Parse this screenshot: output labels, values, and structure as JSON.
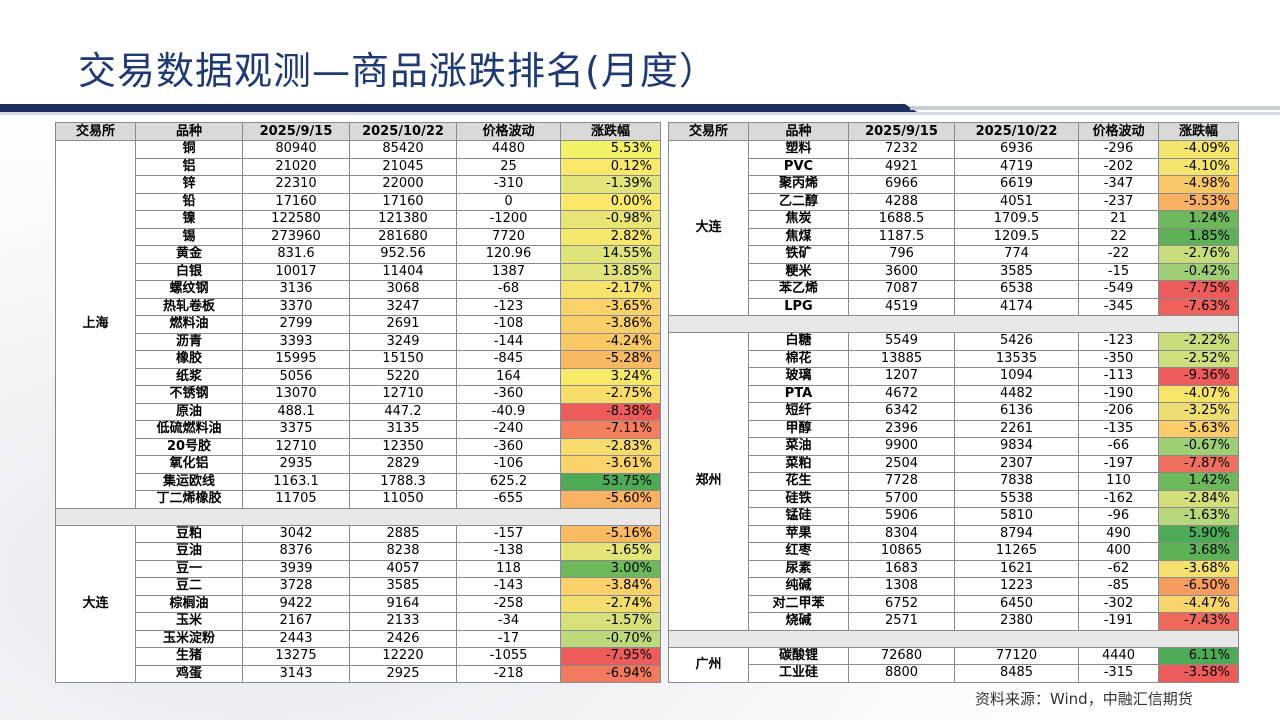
{
  "title": "交易数据观测—商品涨跌排名(月度）",
  "source": "资料来源：Wind，中融汇信期货",
  "headers": [
    "交易所",
    "品种",
    "2025/9/15",
    "2025/10/22",
    "价格波动",
    "涨跌幅"
  ],
  "colors": {
    "title": "#1f3a72",
    "strong_green": "#4daa57",
    "light_green": "#a9d08e",
    "yellow": "#ffe866",
    "light_orange": "#f8c471",
    "orange": "#f5a25a",
    "red": "#ee5b5b"
  },
  "left": {
    "groups": [
      {
        "exchange": "上海",
        "rows": [
          {
            "name": "铜",
            "p1": "80940",
            "p2": "85420",
            "chg": "4480",
            "pct": "5.53%",
            "color": "#f2f266"
          },
          {
            "name": "铝",
            "p1": "21020",
            "p2": "21045",
            "chg": "25",
            "pct": "0.12%",
            "color": "#fce96a"
          },
          {
            "name": "锌",
            "p1": "22310",
            "p2": "22000",
            "chg": "-310",
            "pct": "-1.39%",
            "color": "#e3e57a"
          },
          {
            "name": "铅",
            "p1": "17160",
            "p2": "17160",
            "chg": "0",
            "pct": "0.00%",
            "color": "#fce96a"
          },
          {
            "name": "镍",
            "p1": "122580",
            "p2": "121380",
            "chg": "-1200",
            "pct": "-0.98%",
            "color": "#e8e575"
          },
          {
            "name": "锡",
            "p1": "273960",
            "p2": "281680",
            "chg": "7720",
            "pct": "2.82%",
            "color": "#f6e86a"
          },
          {
            "name": "黄金",
            "p1": "831.6",
            "p2": "952.56",
            "chg": "120.96",
            "pct": "14.55%",
            "color": "#dfe37a"
          },
          {
            "name": "白银",
            "p1": "10017",
            "p2": "11404",
            "chg": "1387",
            "pct": "13.85%",
            "color": "#e0e47a"
          },
          {
            "name": "螺纹钢",
            "p1": "3136",
            "p2": "3068",
            "chg": "-68",
            "pct": "-2.17%",
            "color": "#f6e36c"
          },
          {
            "name": "热轧卷板",
            "p1": "3370",
            "p2": "3247",
            "chg": "-123",
            "pct": "-3.65%",
            "color": "#fbd26a"
          },
          {
            "name": "燃料油",
            "p1": "2799",
            "p2": "2691",
            "chg": "-108",
            "pct": "-3.86%",
            "color": "#fbcf68"
          },
          {
            "name": "沥青",
            "p1": "3393",
            "p2": "3249",
            "chg": "-144",
            "pct": "-4.24%",
            "color": "#fbc866"
          },
          {
            "name": "橡胶",
            "p1": "15995",
            "p2": "15150",
            "chg": "-845",
            "pct": "-5.28%",
            "color": "#f9b862"
          },
          {
            "name": "纸浆",
            "p1": "5056",
            "p2": "5220",
            "chg": "164",
            "pct": "3.24%",
            "color": "#f8e968"
          },
          {
            "name": "不锈钢",
            "p1": "13070",
            "p2": "12710",
            "chg": "-360",
            "pct": "-2.75%",
            "color": "#f8dd6b"
          },
          {
            "name": "原油",
            "p1": "488.1",
            "p2": "447.2",
            "chg": "-40.9",
            "pct": "-8.38%",
            "color": "#ee5b5b"
          },
          {
            "name": "低硫燃料油",
            "p1": "3375",
            "p2": "3135",
            "chg": "-240",
            "pct": "-7.11%",
            "color": "#f47f5f"
          },
          {
            "name": "20号胶",
            "p1": "12710",
            "p2": "12350",
            "chg": "-360",
            "pct": "-2.83%",
            "color": "#f8dc6b"
          },
          {
            "name": "氧化铝",
            "p1": "2935",
            "p2": "2829",
            "chg": "-106",
            "pct": "-3.61%",
            "color": "#fbd36a"
          },
          {
            "name": "集运欧线",
            "p1": "1163.1",
            "p2": "1788.3",
            "chg": "625.2",
            "pct": "53.75%",
            "color": "#4daa57"
          },
          {
            "name": "丁二烯橡胶",
            "p1": "11705",
            "p2": "11050",
            "chg": "-655",
            "pct": "-5.60%",
            "color": "#f8b261"
          }
        ]
      },
      {
        "exchange": "大连",
        "rows": [
          {
            "name": "豆粕",
            "p1": "3042",
            "p2": "2885",
            "chg": "-157",
            "pct": "-5.16%",
            "color": "#f9ba62"
          },
          {
            "name": "豆油",
            "p1": "8376",
            "p2": "8238",
            "chg": "-138",
            "pct": "-1.65%",
            "color": "#e5e478"
          },
          {
            "name": "豆一",
            "p1": "3939",
            "p2": "4057",
            "chg": "118",
            "pct": "3.00%",
            "color": "#6cb85a"
          },
          {
            "name": "豆二",
            "p1": "3728",
            "p2": "3585",
            "chg": "-143",
            "pct": "-3.84%",
            "color": "#fad16a"
          },
          {
            "name": "棕榈油",
            "p1": "9422",
            "p2": "9164",
            "chg": "-258",
            "pct": "-2.74%",
            "color": "#f3dd6c"
          },
          {
            "name": "玉米",
            "p1": "2167",
            "p2": "2133",
            "chg": "-34",
            "pct": "-1.57%",
            "color": "#d7e07a"
          },
          {
            "name": "玉米淀粉",
            "p1": "2443",
            "p2": "2426",
            "chg": "-17",
            "pct": "-0.70%",
            "color": "#bcd97c"
          },
          {
            "name": "生猪",
            "p1": "13275",
            "p2": "12220",
            "chg": "-1055",
            "pct": "-7.95%",
            "color": "#ee5b5b"
          },
          {
            "name": "鸡蛋",
            "p1": "3143",
            "p2": "2925",
            "chg": "-218",
            "pct": "-6.94%",
            "color": "#f27a5e"
          }
        ]
      }
    ]
  },
  "right": {
    "groups": [
      {
        "exchange": "大连",
        "rows": [
          {
            "name": "塑料",
            "p1": "7232",
            "p2": "6936",
            "chg": "-296",
            "pct": "-4.09%",
            "color": "#f3e56c"
          },
          {
            "name": "PVC",
            "p1": "4921",
            "p2": "4719",
            "chg": "-202",
            "pct": "-4.10%",
            "color": "#f3e56c"
          },
          {
            "name": "聚丙烯",
            "p1": "6966",
            "p2": "6619",
            "chg": "-347",
            "pct": "-4.98%",
            "color": "#fbc866"
          },
          {
            "name": "乙二醇",
            "p1": "4288",
            "p2": "4051",
            "chg": "-237",
            "pct": "-5.53%",
            "color": "#f8b062"
          },
          {
            "name": "焦炭",
            "p1": "1688.5",
            "p2": "1709.5",
            "chg": "21",
            "pct": "1.24%",
            "color": "#6cb85a"
          },
          {
            "name": "焦煤",
            "p1": "1187.5",
            "p2": "1209.5",
            "chg": "22",
            "pct": "1.85%",
            "color": "#5db258"
          },
          {
            "name": "铁矿",
            "p1": "796",
            "p2": "774",
            "chg": "-22",
            "pct": "-2.76%",
            "color": "#c7dd7c"
          },
          {
            "name": "粳米",
            "p1": "3600",
            "p2": "3585",
            "chg": "-15",
            "pct": "-0.42%",
            "color": "#9fcf74"
          },
          {
            "name": "苯乙烯",
            "p1": "7087",
            "p2": "6538",
            "chg": "-549",
            "pct": "-7.75%",
            "color": "#ee5b5b"
          },
          {
            "name": "LPG",
            "p1": "4519",
            "p2": "4174",
            "chg": "-345",
            "pct": "-7.63%",
            "color": "#ef625c"
          }
        ]
      },
      {
        "exchange": "郑州",
        "rows": [
          {
            "name": "白糖",
            "p1": "5549",
            "p2": "5426",
            "chg": "-123",
            "pct": "-2.22%",
            "color": "#c7dd7c"
          },
          {
            "name": "棉花",
            "p1": "13885",
            "p2": "13535",
            "chg": "-350",
            "pct": "-2.52%",
            "color": "#d0df7b"
          },
          {
            "name": "玻璃",
            "p1": "1207",
            "p2": "1094",
            "chg": "-113",
            "pct": "-9.36%",
            "color": "#ee5b5b"
          },
          {
            "name": "PTA",
            "p1": "4672",
            "p2": "4482",
            "chg": "-190",
            "pct": "-4.07%",
            "color": "#f8e46b"
          },
          {
            "name": "短纤",
            "p1": "6342",
            "p2": "6136",
            "chg": "-206",
            "pct": "-3.25%",
            "color": "#ecde70"
          },
          {
            "name": "甲醇",
            "p1": "2396",
            "p2": "2261",
            "chg": "-135",
            "pct": "-5.63%",
            "color": "#fbcc68"
          },
          {
            "name": "菜油",
            "p1": "9900",
            "p2": "9834",
            "chg": "-66",
            "pct": "-0.67%",
            "color": "#9fcf74"
          },
          {
            "name": "菜粕",
            "p1": "2504",
            "p2": "2307",
            "chg": "-197",
            "pct": "-7.87%",
            "color": "#f07060"
          },
          {
            "name": "花生",
            "p1": "7728",
            "p2": "7838",
            "chg": "110",
            "pct": "1.42%",
            "color": "#6cb85a"
          },
          {
            "name": "硅铁",
            "p1": "5700",
            "p2": "5538",
            "chg": "-162",
            "pct": "-2.84%",
            "color": "#d4df79"
          },
          {
            "name": "锰硅",
            "p1": "5906",
            "p2": "5810",
            "chg": "-96",
            "pct": "-1.63%",
            "color": "#b6d77a"
          },
          {
            "name": "苹果",
            "p1": "8304",
            "p2": "8794",
            "chg": "490",
            "pct": "5.90%",
            "color": "#4daa57"
          },
          {
            "name": "红枣",
            "p1": "10865",
            "p2": "11265",
            "chg": "400",
            "pct": "3.68%",
            "color": "#5db258"
          },
          {
            "name": "尿素",
            "p1": "1683",
            "p2": "1621",
            "chg": "-62",
            "pct": "-3.68%",
            "color": "#f3e06d"
          },
          {
            "name": "纯碱",
            "p1": "1308",
            "p2": "1223",
            "chg": "-85",
            "pct": "-6.50%",
            "color": "#f49d5f"
          },
          {
            "name": "对二甲苯",
            "p1": "6752",
            "p2": "6450",
            "chg": "-302",
            "pct": "-4.47%",
            "color": "#f8d56a"
          },
          {
            "name": "烧碱",
            "p1": "2571",
            "p2": "2380",
            "chg": "-191",
            "pct": "-7.43%",
            "color": "#ef6a5d"
          }
        ]
      },
      {
        "exchange": "广州",
        "rows": [
          {
            "name": "碳酸锂",
            "p1": "72680",
            "p2": "77120",
            "chg": "4440",
            "pct": "6.11%",
            "color": "#4daa57"
          },
          {
            "name": "工业硅",
            "p1": "8800",
            "p2": "8485",
            "chg": "-315",
            "pct": "-3.58%",
            "color": "#ee5b5b"
          }
        ]
      }
    ]
  }
}
